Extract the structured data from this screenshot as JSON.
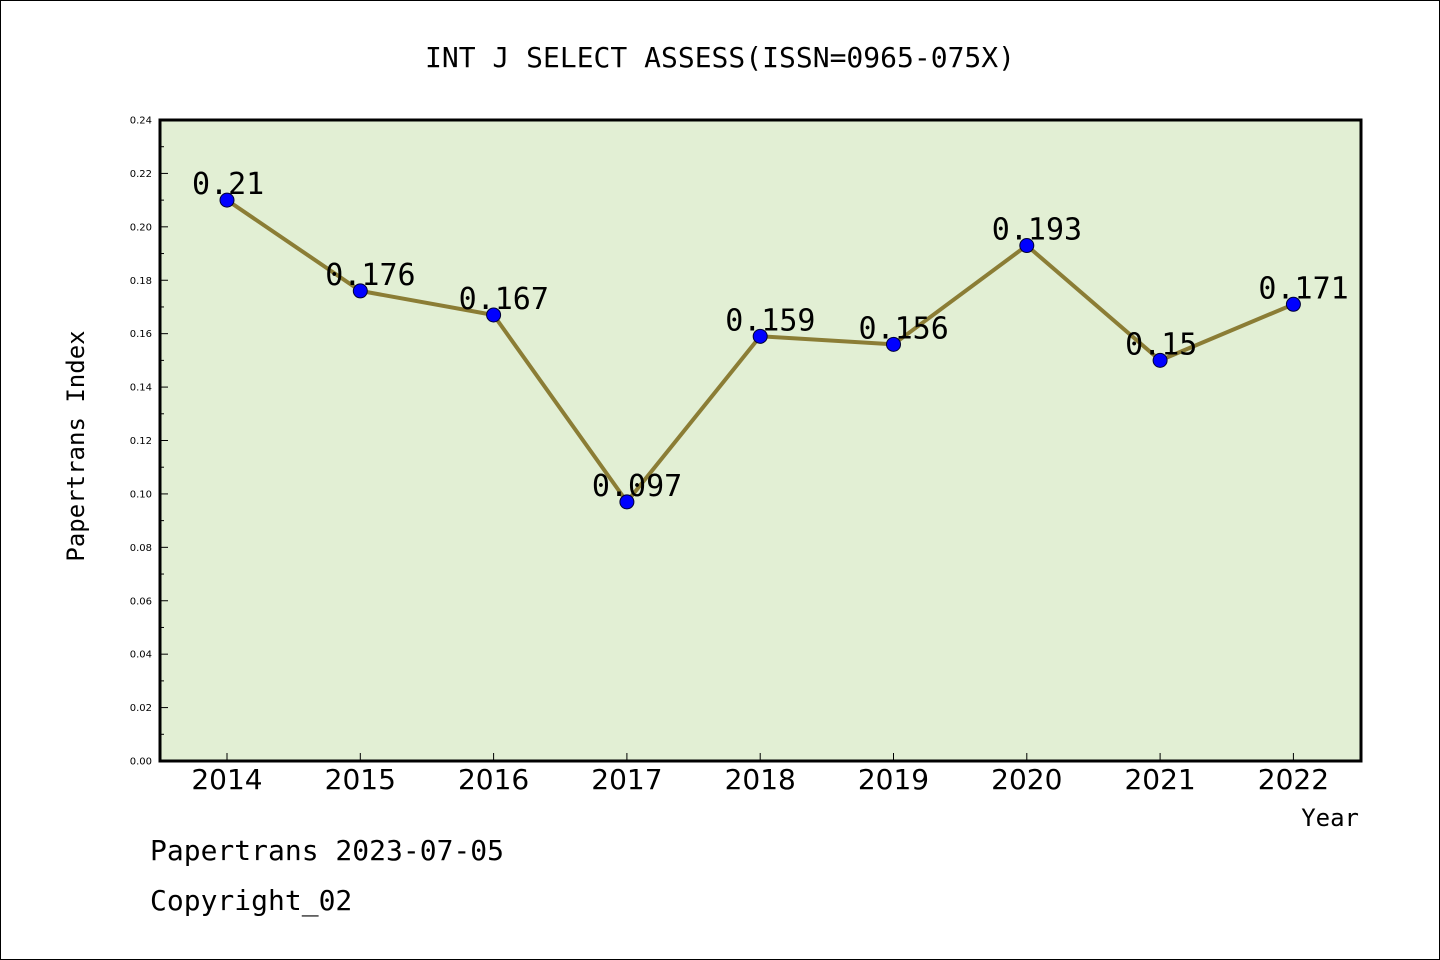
{
  "chart_data": {
    "type": "line",
    "title": "INT J SELECT ASSESS(ISSN=0965-075X)",
    "xlabel": "Year",
    "ylabel": "Papertrans Index",
    "categories": [
      "2014",
      "2015",
      "2016",
      "2017",
      "2018",
      "2019",
      "2020",
      "2021",
      "2022"
    ],
    "values": [
      0.21,
      0.176,
      0.167,
      0.097,
      0.159,
      0.156,
      0.193,
      0.15,
      0.171
    ],
    "data_labels": [
      "0.21",
      "0.176",
      "0.167",
      "0.097",
      "0.159",
      "0.156",
      "0.193",
      "0.15",
      "0.171"
    ],
    "ylim": [
      0,
      0.24
    ],
    "yticks": [
      "0.00",
      "0.02",
      "0.04",
      "0.06",
      "0.08",
      "0.10",
      "0.12",
      "0.14",
      "0.16",
      "0.18",
      "0.20",
      "0.22",
      "0.24"
    ],
    "grid": false,
    "colors": {
      "plot_background": "#e2efd4",
      "line": "#8b7d35",
      "marker": "#0000ff"
    }
  },
  "footer": {
    "line1": "Papertrans 2023-07-05",
    "line2": "Copyright_02"
  }
}
